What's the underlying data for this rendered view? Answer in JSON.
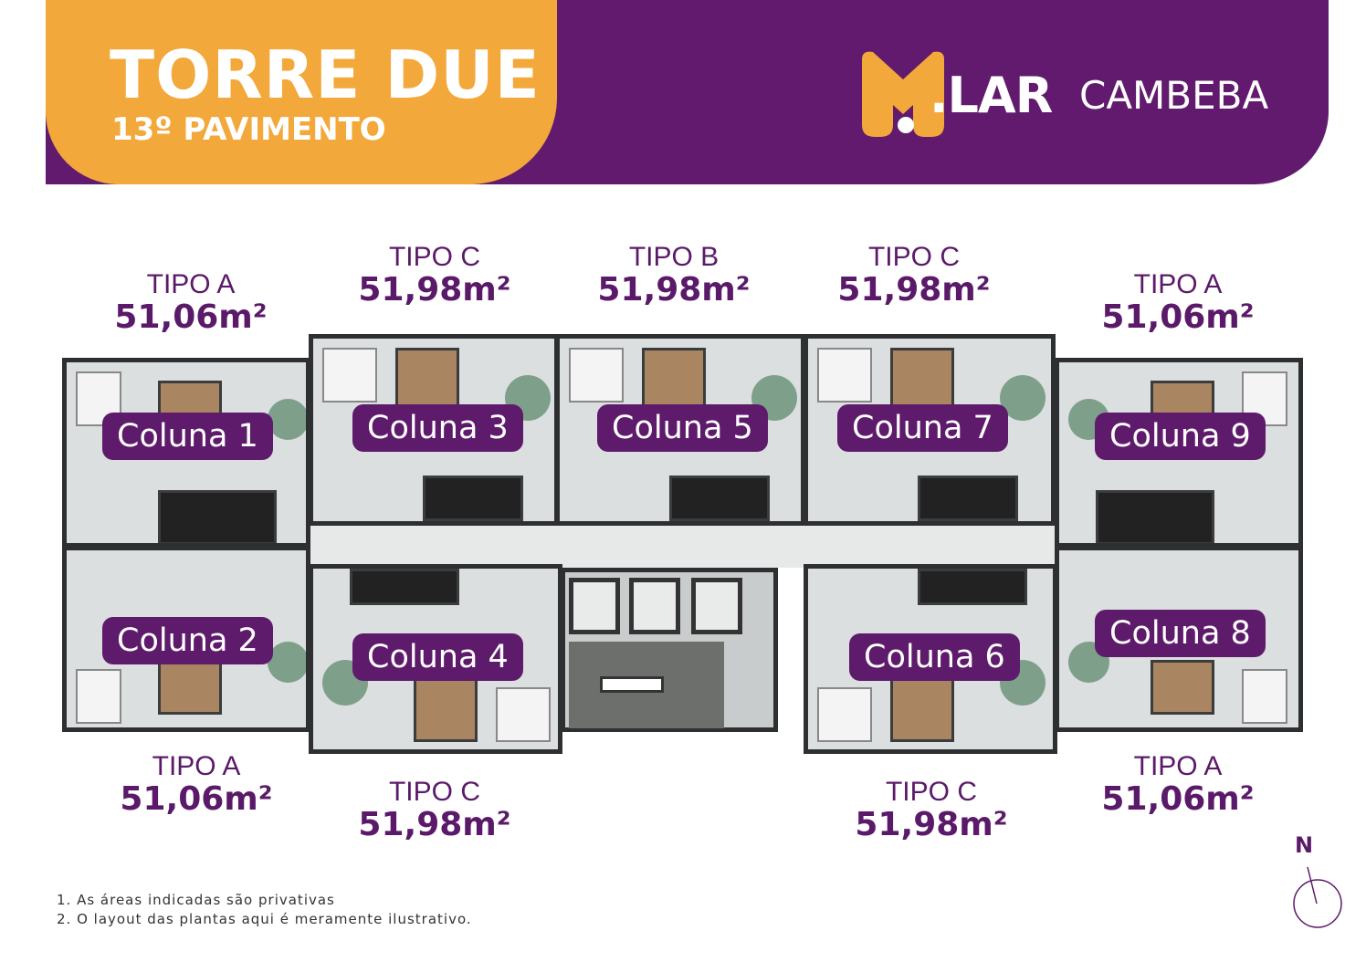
{
  "header": {
    "title": "TORRE DUE",
    "subtitle": "13º PAVIMENTO",
    "logo": {
      "mark": "M",
      "brand": ".LAR",
      "name": "CAMBEBA"
    },
    "colors": {
      "purple": "#611a6e",
      "orange": "#f2a83a"
    }
  },
  "units": [
    {
      "column": "Coluna 1",
      "type": "TIPO A",
      "area": "51,06m²"
    },
    {
      "column": "Coluna 2",
      "type": "TIPO A",
      "area": "51,06m²"
    },
    {
      "column": "Coluna 3",
      "type": "TIPO C",
      "area": "51,98m²"
    },
    {
      "column": "Coluna 4",
      "type": "TIPO C",
      "area": "51,98m²"
    },
    {
      "column": "Coluna 5",
      "type": "TIPO B",
      "area": "51,98m²"
    },
    {
      "column": "Coluna 6",
      "type": "TIPO C",
      "area": "51,98m²"
    },
    {
      "column": "Coluna 7",
      "type": "TIPO C",
      "area": "51,98m²"
    },
    {
      "column": "Coluna 8",
      "type": "TIPO A",
      "area": "51,06m²"
    },
    {
      "column": "Coluna 9",
      "type": "TIPO A",
      "area": "51,06m²"
    }
  ],
  "notes": [
    "1. As áreas indicadas são privativas",
    "2. O layout das plantas aqui é meramente ilustrativo."
  ],
  "compass": {
    "label": "N",
    "icon": "north-arrow-icon"
  }
}
